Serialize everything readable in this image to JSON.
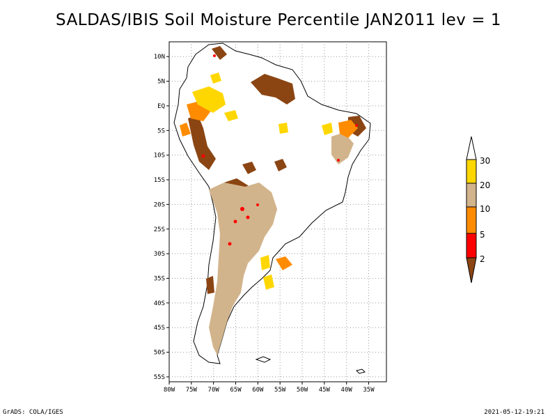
{
  "title": "SALDAS/IBIS Soil Moisture Percentile JAN2011 lev = 1",
  "footer": {
    "left": "GrADS: COLA/IGES",
    "right": "2021-05-12-19:21"
  },
  "map": {
    "lon_range": [
      -80,
      -31
    ],
    "lat_range": [
      -56,
      13
    ],
    "lon_ticks": [
      "80W",
      "75W",
      "70W",
      "65W",
      "60W",
      "55W",
      "50W",
      "45W",
      "40W",
      "35W"
    ],
    "lat_ticks": [
      "10N",
      "5N",
      "EQ",
      "5S",
      "10S",
      "15S",
      "20S",
      "25S",
      "30S",
      "35S",
      "40S",
      "45S",
      "50S",
      "55S"
    ]
  },
  "legend": {
    "labels": [
      "30",
      "20",
      "10",
      "5",
      "2"
    ],
    "colors": {
      "c2": "#8b4513",
      "c5": "#ff0000",
      "c10": "#ff8c00",
      "c20": "#d2b48c",
      "c30": "#ffd700",
      "above": "#ffffff"
    }
  }
}
